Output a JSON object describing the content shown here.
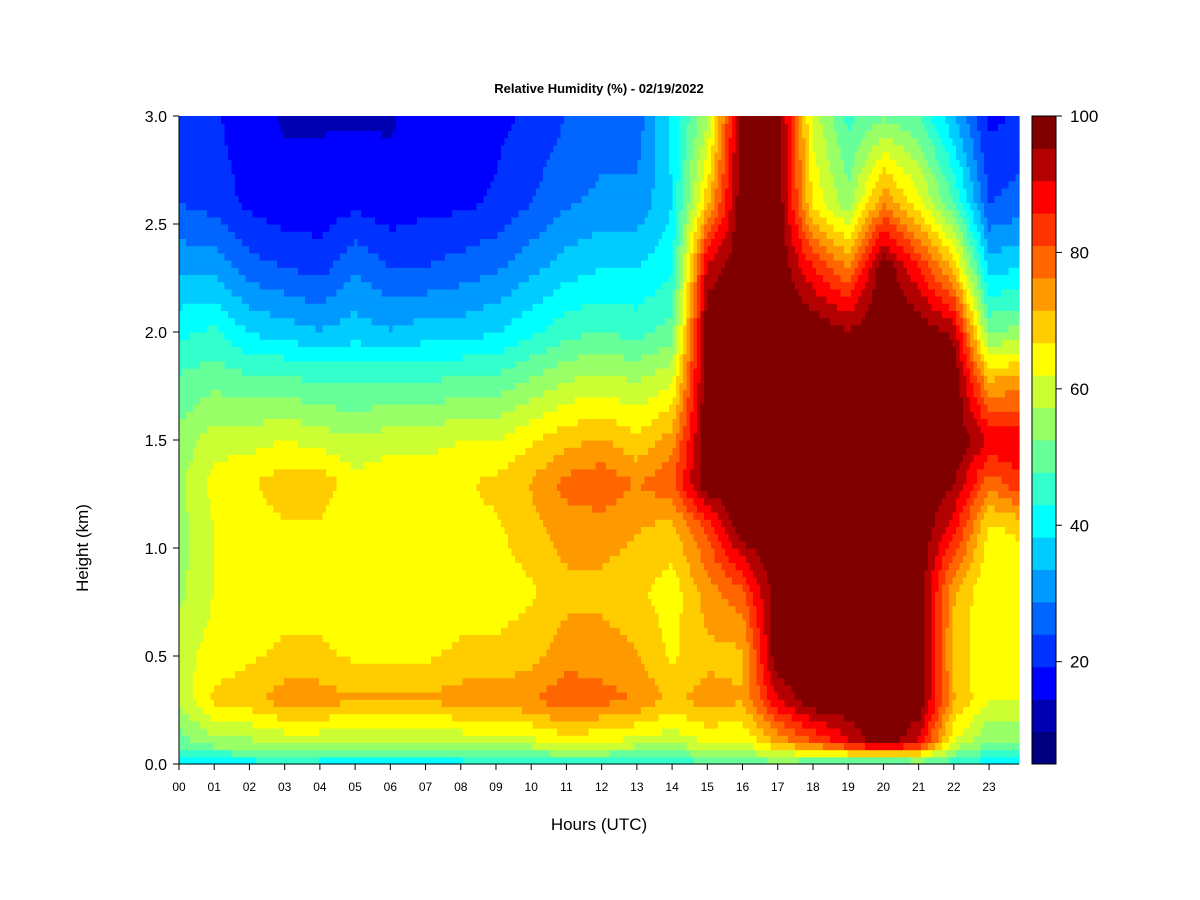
{
  "chart_data": {
    "type": "heatmap",
    "title": "Relative Humidity (%) - 02/19/2022",
    "xlabel": "Hours (UTC)",
    "ylabel": "Height (km)",
    "x_ticks": [
      "00",
      "01",
      "02",
      "03",
      "04",
      "05",
      "06",
      "07",
      "08",
      "09",
      "10",
      "11",
      "12",
      "13",
      "14",
      "15",
      "16",
      "17",
      "18",
      "19",
      "20",
      "21",
      "22",
      "23"
    ],
    "y_ticks": [
      "0.0",
      "0.5",
      "1.0",
      "1.5",
      "2.0",
      "2.5",
      "3.0"
    ],
    "xlim": [
      0,
      23.85
    ],
    "ylim": [
      0,
      3.0
    ],
    "colorbar": {
      "label_values": [
        20,
        40,
        60,
        80,
        100
      ],
      "labels": [
        "20",
        "40",
        "60",
        "80",
        "100"
      ],
      "range": [
        5,
        100
      ],
      "colors": [
        "#00007f",
        "#0000b3",
        "#0000ff",
        "#0033ff",
        "#0066ff",
        "#0099ff",
        "#00ccff",
        "#00ffff",
        "#33ffcc",
        "#66ff99",
        "#99ff66",
        "#ccff33",
        "#ffff00",
        "#ffcc00",
        "#ff9900",
        "#ff6600",
        "#ff3300",
        "#ff0000",
        "#b30000",
        "#800000"
      ]
    },
    "hours": [
      0,
      1,
      2,
      3,
      4,
      5,
      6,
      7,
      8,
      9,
      10,
      11,
      12,
      13,
      14,
      15,
      16,
      17,
      18,
      19,
      20,
      21,
      22,
      23,
      23.85
    ],
    "heights_km": [
      0.0,
      0.1,
      0.3,
      0.5,
      0.8,
      1.1,
      1.3,
      1.5,
      1.8,
      2.0,
      2.3,
      2.6,
      3.0
    ],
    "rh_profiles": [
      [
        38,
        50,
        58,
        60,
        56,
        55,
        56,
        54,
        48,
        42,
        32,
        24,
        22
      ],
      [
        40,
        55,
        68,
        64,
        62,
        62,
        64,
        60,
        50,
        44,
        32,
        22,
        20
      ],
      [
        40,
        56,
        70,
        66,
        63,
        64,
        66,
        60,
        48,
        38,
        26,
        18,
        16
      ],
      [
        42,
        58,
        74,
        68,
        64,
        66,
        70,
        62,
        48,
        36,
        24,
        16,
        14
      ],
      [
        40,
        58,
        74,
        68,
        64,
        66,
        70,
        60,
        46,
        34,
        22,
        16,
        14
      ],
      [
        40,
        56,
        72,
        66,
        62,
        62,
        64,
        58,
        46,
        36,
        28,
        18,
        14
      ],
      [
        40,
        58,
        72,
        66,
        62,
        64,
        66,
        60,
        46,
        34,
        24,
        16,
        14
      ],
      [
        40,
        56,
        72,
        66,
        62,
        64,
        66,
        60,
        46,
        36,
        24,
        18,
        16
      ],
      [
        40,
        58,
        74,
        68,
        64,
        66,
        66,
        62,
        48,
        36,
        26,
        18,
        16
      ],
      [
        40,
        58,
        74,
        68,
        64,
        66,
        68,
        62,
        48,
        38,
        28,
        20,
        18
      ],
      [
        42,
        60,
        76,
        70,
        66,
        70,
        72,
        66,
        52,
        42,
        32,
        24,
        20
      ],
      [
        44,
        64,
        80,
        74,
        70,
        74,
        78,
        70,
        56,
        46,
        36,
        28,
        24
      ],
      [
        44,
        62,
        78,
        74,
        70,
        74,
        80,
        72,
        58,
        48,
        38,
        30,
        26
      ],
      [
        42,
        60,
        76,
        72,
        68,
        72,
        76,
        68,
        56,
        46,
        38,
        30,
        26
      ],
      [
        44,
        58,
        70,
        66,
        64,
        70,
        80,
        74,
        60,
        50,
        42,
        38,
        40
      ],
      [
        46,
        62,
        74,
        70,
        74,
        82,
        100,
        100,
        100,
        100,
        92,
        70,
        56
      ],
      [
        48,
        62,
        72,
        70,
        80,
        100,
        100,
        100,
        100,
        100,
        100,
        100,
        100
      ],
      [
        50,
        72,
        90,
        100,
        100,
        100,
        100,
        100,
        100,
        100,
        100,
        100,
        100
      ],
      [
        46,
        80,
        100,
        100,
        100,
        100,
        100,
        100,
        100,
        100,
        86,
        66,
        60
      ],
      [
        44,
        90,
        100,
        100,
        100,
        100,
        100,
        100,
        100,
        96,
        76,
        54,
        46
      ],
      [
        40,
        100,
        100,
        100,
        100,
        100,
        100,
        100,
        100,
        100,
        100,
        76,
        52
      ],
      [
        46,
        90,
        100,
        100,
        100,
        100,
        100,
        100,
        100,
        100,
        86,
        64,
        48
      ],
      [
        44,
        62,
        72,
        70,
        72,
        88,
        96,
        100,
        100,
        94,
        70,
        48,
        34
      ],
      [
        40,
        52,
        62,
        62,
        62,
        66,
        78,
        90,
        70,
        52,
        36,
        24,
        18
      ],
      [
        40,
        52,
        62,
        62,
        62,
        68,
        84,
        90,
        72,
        54,
        38,
        26,
        20
      ]
    ]
  }
}
